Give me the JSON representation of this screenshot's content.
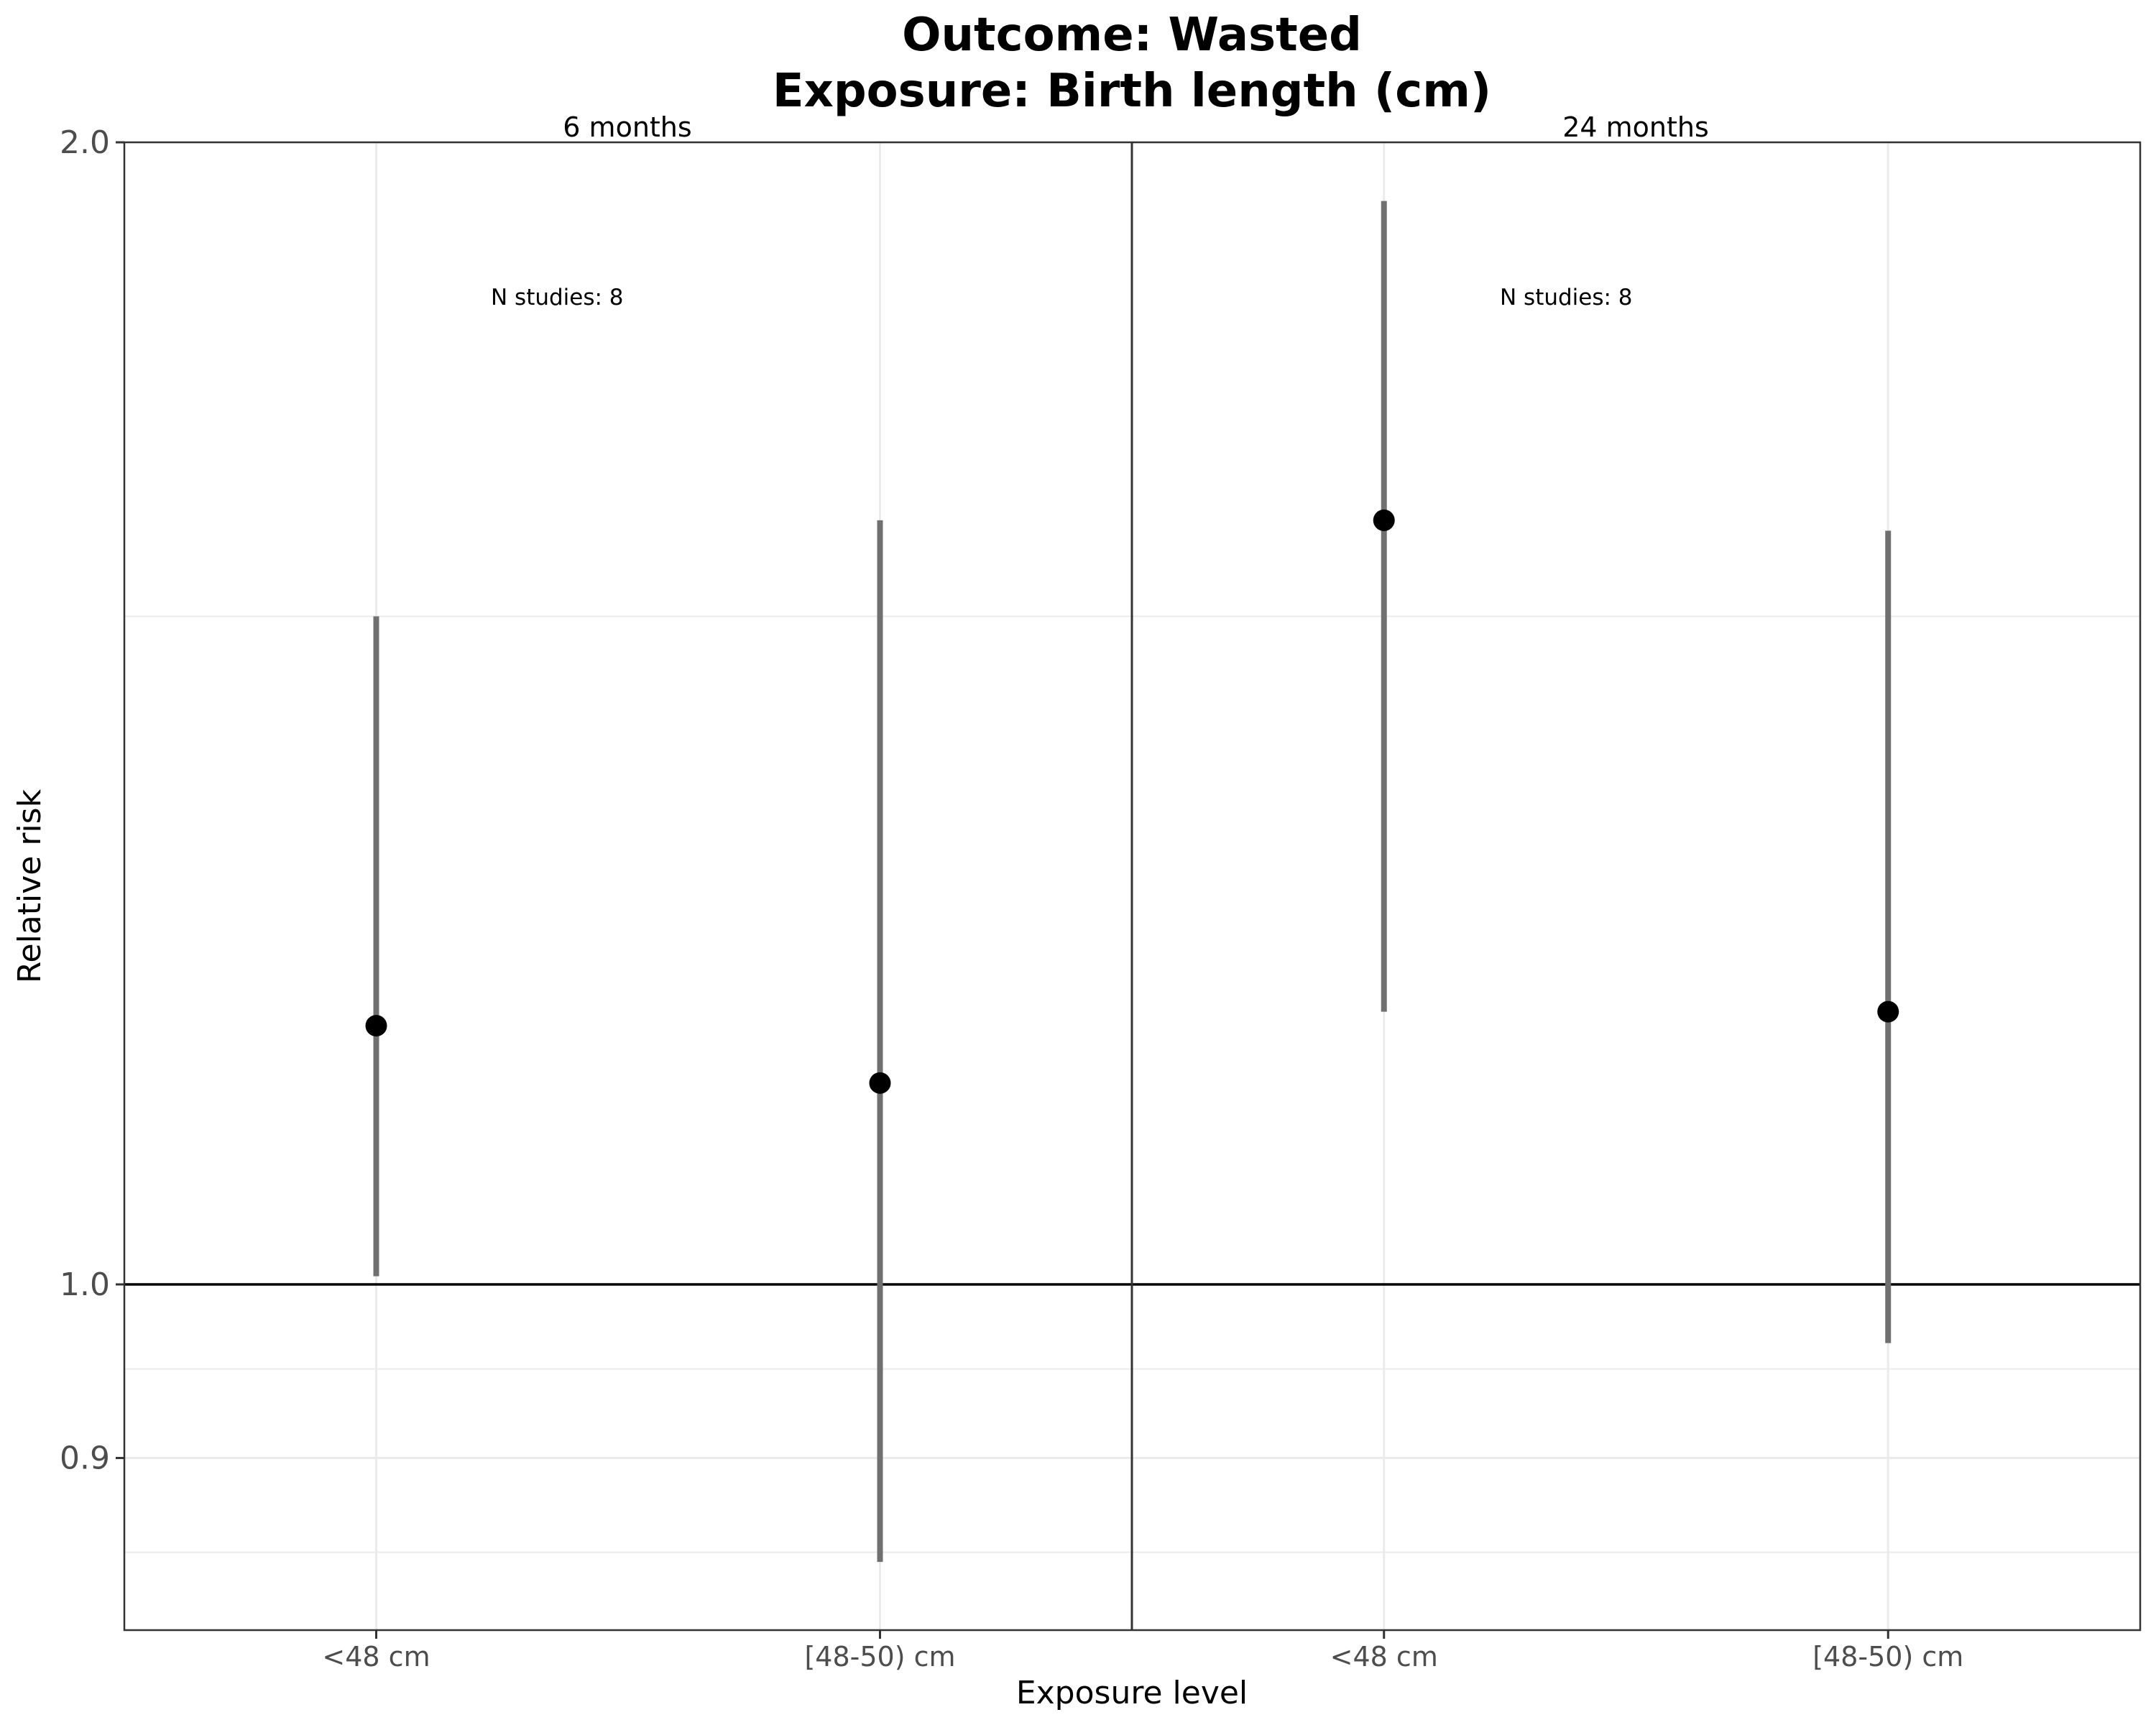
{
  "chart_data": {
    "type": "scatter",
    "title": "Outcome: Wasted",
    "subtitle": "Exposure: Birth length (cm)",
    "xlabel": "Exposure level",
    "ylabel": "Relative risk",
    "y_scale": "log",
    "ylim": [
      0.8,
      2.0
    ],
    "yticks": [
      {
        "value": 0.9,
        "label": "0.9"
      },
      {
        "value": 1.0,
        "label": "1.0"
      },
      {
        "value": 2.0,
        "label": "2.0"
      }
    ],
    "y_minor_gridlines": [
      0.85,
      0.95,
      1.5
    ],
    "reference_line": 1.0,
    "grid": true,
    "categories": [
      "<48 cm",
      "[48-50) cm"
    ],
    "panels": [
      {
        "label": "6 months",
        "annotation": "N studies: 8",
        "points": [
          {
            "category": "<48 cm",
            "estimate": 1.17,
            "lower": 1.005,
            "upper": 1.5
          },
          {
            "category": "[48-50) cm",
            "estimate": 1.13,
            "lower": 0.845,
            "upper": 1.59
          }
        ]
      },
      {
        "label": "24 months",
        "annotation": "N studies: 8",
        "points": [
          {
            "category": "<48 cm",
            "estimate": 1.59,
            "lower": 1.18,
            "upper": 1.93
          },
          {
            "category": "[48-50) cm",
            "estimate": 1.18,
            "lower": 0.965,
            "upper": 1.58
          }
        ]
      }
    ]
  }
}
